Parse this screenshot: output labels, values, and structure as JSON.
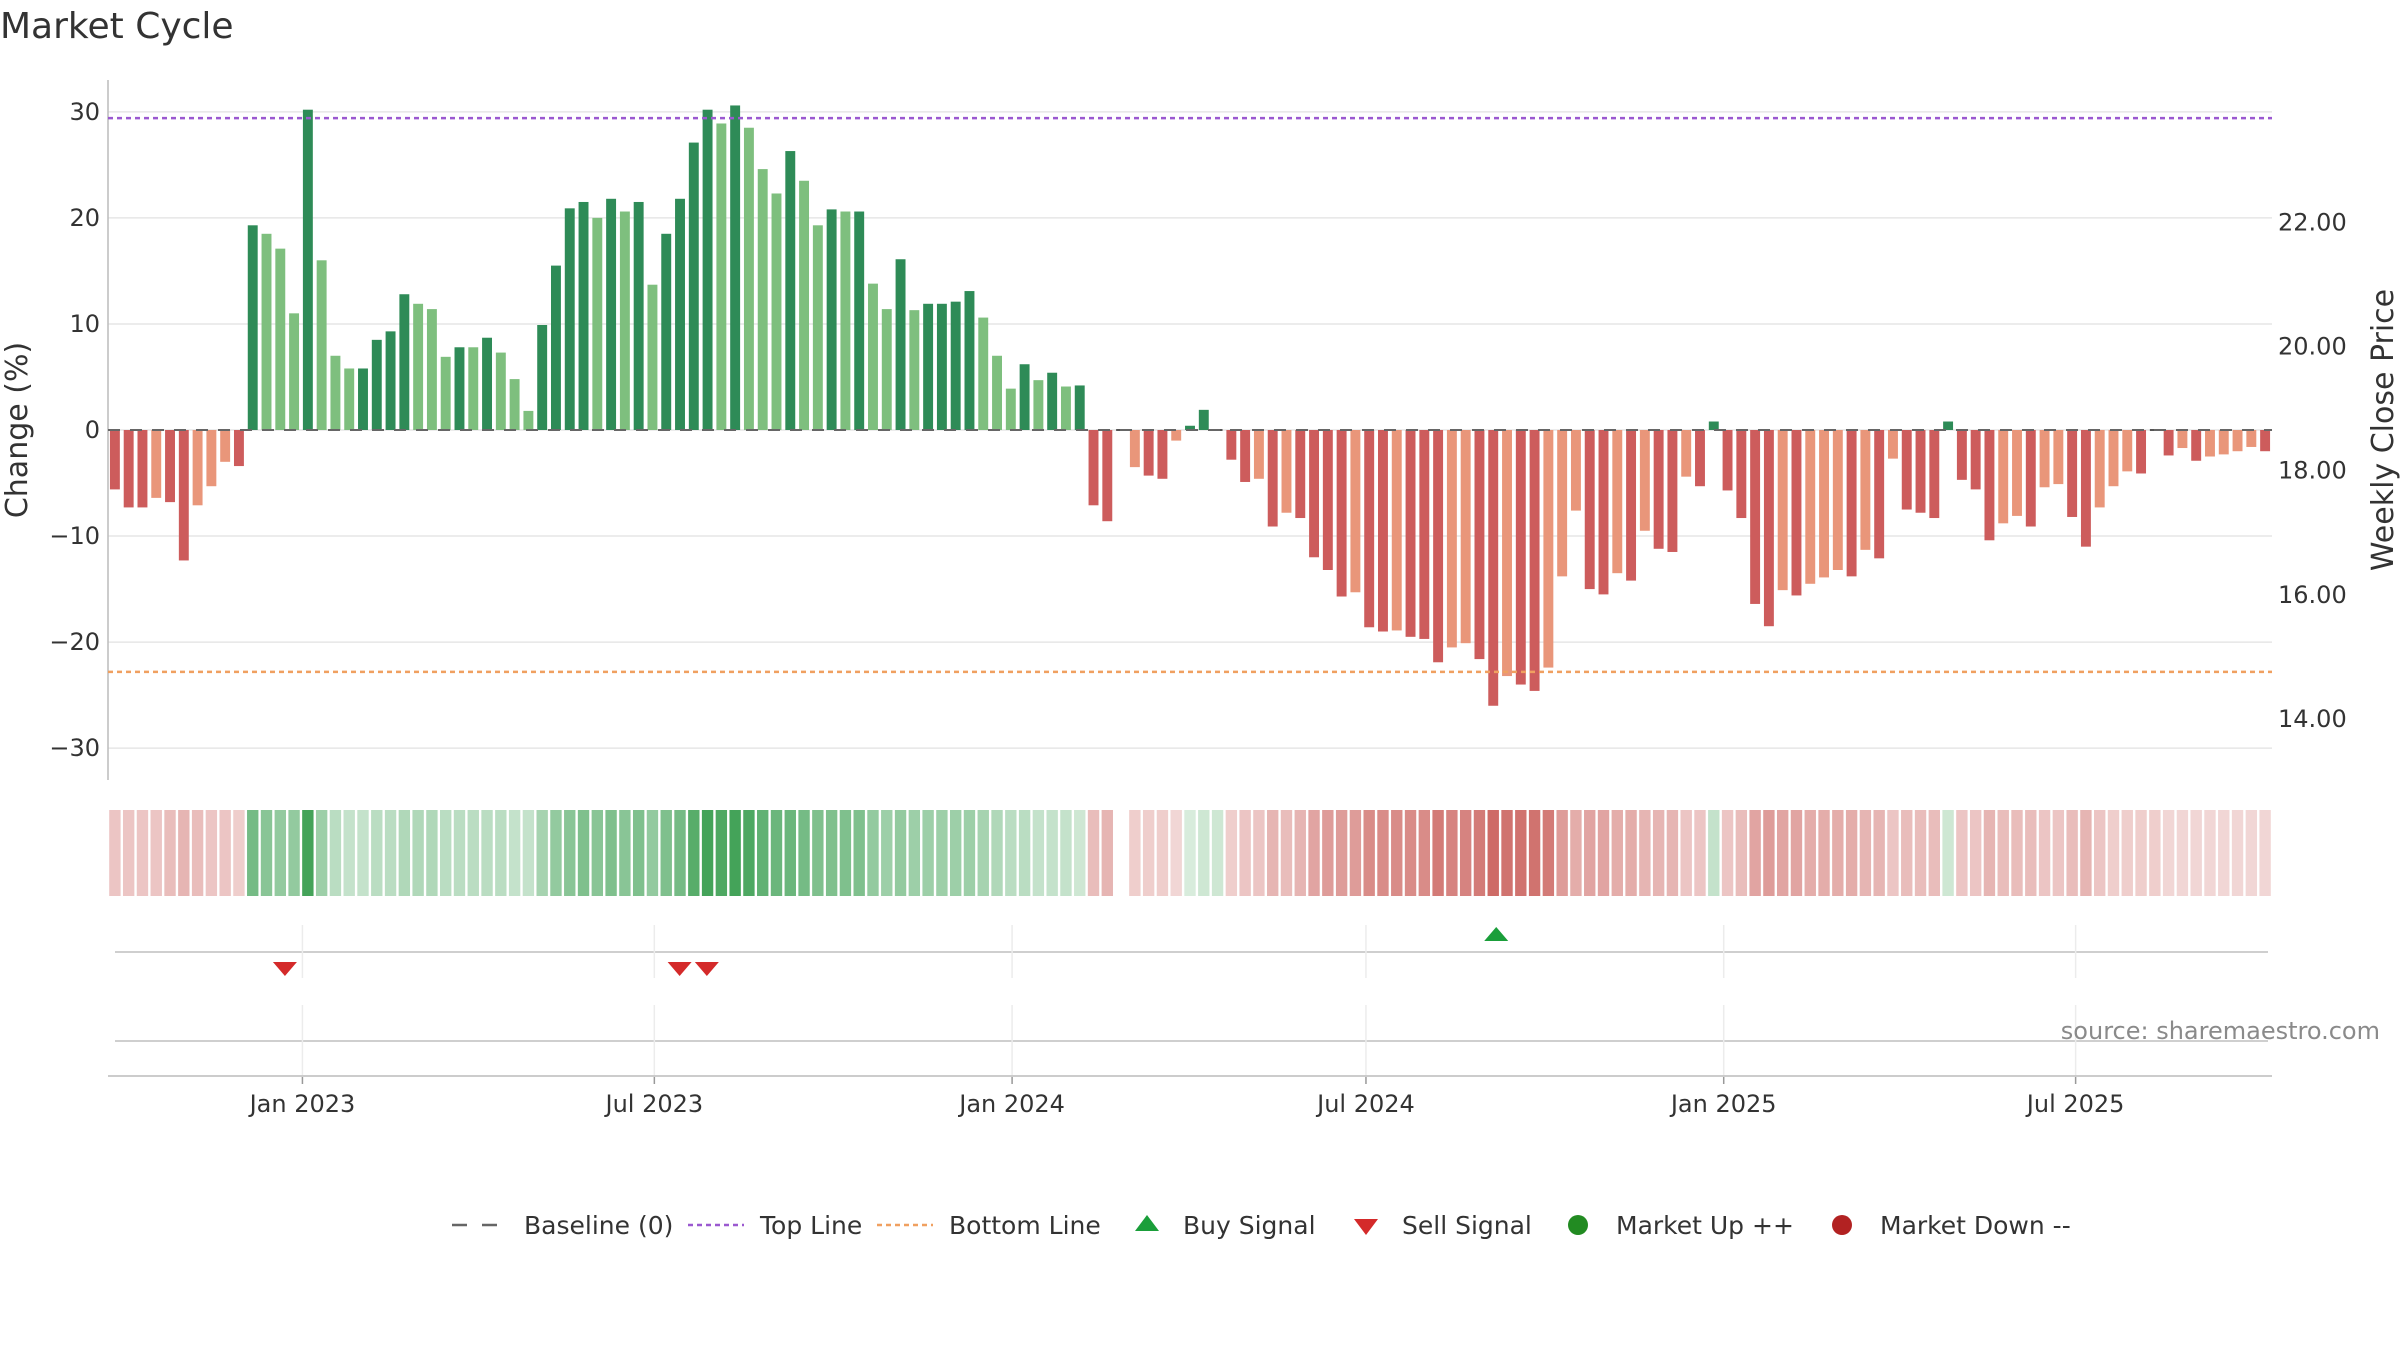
{
  "chart_data": {
    "type": "bar",
    "title": "Market Cycle",
    "ylabel": "Change (%)",
    "y2label": "Weekly Close Price",
    "ylim": [
      -33,
      33
    ],
    "y2lim": [
      13.0,
      24.28
    ],
    "yticks": [
      -30,
      -20,
      -10,
      0,
      10,
      20,
      30
    ],
    "y2ticks": [
      14,
      16,
      18,
      20,
      22
    ],
    "y2tick_labels": [
      "14.00",
      "16.00",
      "18.00",
      "20.00",
      "22.00"
    ],
    "top_line": 29.4,
    "bottom_line": -22.8,
    "x_start": "2022-09-23",
    "x_end": "2025-10-10",
    "xtick_dates": [
      "2023-01-01",
      "2023-07-01",
      "2024-01-01",
      "2024-07-01",
      "2025-01-01",
      "2025-07-01"
    ],
    "xtick_labels": [
      "Jan 2023",
      "Jul 2023",
      "Jan 2024",
      "Jul 2024",
      "Jan 2025",
      "Jul 2025"
    ],
    "grid": true,
    "legend_position": "bottom-center",
    "source": "source: sharemaestro.com",
    "colors": {
      "strong_up": "#2e8b57",
      "weak_up": "#7ebf7e",
      "strong_down": "#cd5c5c",
      "weak_down": "#e9967a",
      "top_line": "#9b59d0",
      "bottom_line": "#f0a060",
      "buy": "#1a9e3a",
      "sell": "#d42a2a",
      "market_up": "#228b22",
      "market_down": "#b22222",
      "baseline": "#666666"
    },
    "bars": [
      [
        -5.6,
        "s"
      ],
      [
        -7.3,
        "s"
      ],
      [
        -7.3,
        "s"
      ],
      [
        -6.4,
        "w"
      ],
      [
        -6.8,
        "s"
      ],
      [
        -12.3,
        "s"
      ],
      [
        -7.1,
        "w"
      ],
      [
        -5.3,
        "w"
      ],
      [
        -3.0,
        "w"
      ],
      [
        -3.4,
        "s"
      ],
      [
        19.3,
        "s"
      ],
      [
        18.5,
        "w"
      ],
      [
        17.1,
        "w"
      ],
      [
        11.0,
        "w"
      ],
      [
        30.2,
        "s"
      ],
      [
        16.0,
        "w"
      ],
      [
        7.0,
        "w"
      ],
      [
        5.8,
        "w"
      ],
      [
        5.8,
        "s"
      ],
      [
        8.5,
        "s"
      ],
      [
        9.3,
        "s"
      ],
      [
        12.8,
        "s"
      ],
      [
        11.9,
        "w"
      ],
      [
        11.4,
        "w"
      ],
      [
        6.9,
        "w"
      ],
      [
        7.8,
        "s"
      ],
      [
        7.8,
        "w"
      ],
      [
        8.7,
        "s"
      ],
      [
        7.3,
        "w"
      ],
      [
        4.8,
        "w"
      ],
      [
        1.8,
        "w"
      ],
      [
        9.9,
        "s"
      ],
      [
        15.5,
        "s"
      ],
      [
        20.9,
        "s"
      ],
      [
        21.5,
        "s"
      ],
      [
        20.0,
        "w"
      ],
      [
        21.8,
        "s"
      ],
      [
        20.6,
        "w"
      ],
      [
        21.5,
        "s"
      ],
      [
        13.7,
        "w"
      ],
      [
        18.5,
        "s"
      ],
      [
        21.8,
        "s"
      ],
      [
        27.1,
        "s"
      ],
      [
        30.2,
        "s"
      ],
      [
        28.9,
        "w"
      ],
      [
        30.6,
        "s"
      ],
      [
        28.5,
        "w"
      ],
      [
        24.6,
        "w"
      ],
      [
        22.3,
        "w"
      ],
      [
        26.3,
        "s"
      ],
      [
        23.5,
        "w"
      ],
      [
        19.3,
        "w"
      ],
      [
        20.8,
        "s"
      ],
      [
        20.6,
        "w"
      ],
      [
        20.6,
        "s"
      ],
      [
        13.8,
        "w"
      ],
      [
        11.4,
        "w"
      ],
      [
        16.1,
        "s"
      ],
      [
        11.3,
        "w"
      ],
      [
        11.9,
        "s"
      ],
      [
        11.9,
        "s"
      ],
      [
        12.1,
        "s"
      ],
      [
        13.1,
        "s"
      ],
      [
        10.6,
        "w"
      ],
      [
        7.0,
        "w"
      ],
      [
        3.9,
        "w"
      ],
      [
        6.2,
        "s"
      ],
      [
        4.7,
        "w"
      ],
      [
        5.4,
        "s"
      ],
      [
        4.1,
        "w"
      ],
      [
        4.2,
        "s"
      ],
      [
        -7.1,
        "s"
      ],
      [
        -8.6,
        "s"
      ],
      [
        0,
        "n"
      ],
      [
        -3.5,
        "w"
      ],
      [
        -4.3,
        "s"
      ],
      [
        -4.6,
        "s"
      ],
      [
        -1.0,
        "w"
      ],
      [
        0.4,
        "s"
      ],
      [
        1.9,
        "s"
      ],
      [
        0,
        "n"
      ],
      [
        -2.8,
        "s"
      ],
      [
        -4.9,
        "s"
      ],
      [
        -4.6,
        "w"
      ],
      [
        -9.1,
        "s"
      ],
      [
        -7.8,
        "w"
      ],
      [
        -8.3,
        "s"
      ],
      [
        -12.0,
        "s"
      ],
      [
        -13.2,
        "s"
      ],
      [
        -15.7,
        "s"
      ],
      [
        -15.3,
        "w"
      ],
      [
        -18.6,
        "s"
      ],
      [
        -19.0,
        "s"
      ],
      [
        -18.9,
        "w"
      ],
      [
        -19.5,
        "s"
      ],
      [
        -19.7,
        "s"
      ],
      [
        -21.9,
        "s"
      ],
      [
        -20.5,
        "w"
      ],
      [
        -20.1,
        "w"
      ],
      [
        -21.6,
        "s"
      ],
      [
        -26.0,
        "s"
      ],
      [
        -23.2,
        "w"
      ],
      [
        -24.0,
        "s"
      ],
      [
        -24.6,
        "s"
      ],
      [
        -22.4,
        "w"
      ],
      [
        -13.8,
        "w"
      ],
      [
        -7.6,
        "w"
      ],
      [
        -15.0,
        "s"
      ],
      [
        -15.5,
        "s"
      ],
      [
        -13.5,
        "w"
      ],
      [
        -14.2,
        "s"
      ],
      [
        -9.5,
        "w"
      ],
      [
        -11.2,
        "s"
      ],
      [
        -11.5,
        "s"
      ],
      [
        -4.4,
        "w"
      ],
      [
        -5.3,
        "s"
      ],
      [
        0.8,
        "s"
      ],
      [
        -5.7,
        "s"
      ],
      [
        -8.3,
        "s"
      ],
      [
        -16.4,
        "s"
      ],
      [
        -18.5,
        "s"
      ],
      [
        -15.1,
        "w"
      ],
      [
        -15.6,
        "s"
      ],
      [
        -14.5,
        "w"
      ],
      [
        -13.9,
        "w"
      ],
      [
        -13.2,
        "w"
      ],
      [
        -13.8,
        "s"
      ],
      [
        -11.3,
        "w"
      ],
      [
        -12.1,
        "s"
      ],
      [
        -2.7,
        "w"
      ],
      [
        -7.5,
        "s"
      ],
      [
        -7.8,
        "s"
      ],
      [
        -8.3,
        "s"
      ],
      [
        0.8,
        "s"
      ],
      [
        -4.7,
        "s"
      ],
      [
        -5.6,
        "s"
      ],
      [
        -10.4,
        "s"
      ],
      [
        -8.8,
        "w"
      ],
      [
        -8.1,
        "w"
      ],
      [
        -9.1,
        "s"
      ],
      [
        -5.4,
        "w"
      ],
      [
        -5.1,
        "w"
      ],
      [
        -8.2,
        "s"
      ],
      [
        -11.0,
        "s"
      ],
      [
        -7.3,
        "w"
      ],
      [
        -5.3,
        "w"
      ],
      [
        -3.9,
        "w"
      ],
      [
        -4.1,
        "s"
      ],
      [
        0,
        "n"
      ],
      [
        -2.4,
        "s"
      ],
      [
        -1.7,
        "w"
      ],
      [
        -2.9,
        "s"
      ],
      [
        -2.5,
        "w"
      ],
      [
        -2.3,
        "w"
      ],
      [
        -2.0,
        "w"
      ],
      [
        -1.6,
        "w"
      ],
      [
        -2.0,
        "s"
      ]
    ],
    "strip_intensity": [
      -0.35,
      -0.35,
      -0.35,
      -0.35,
      -0.4,
      -0.45,
      -0.4,
      -0.35,
      -0.35,
      -0.3,
      0.7,
      0.6,
      0.55,
      0.55,
      0.95,
      0.5,
      0.35,
      0.3,
      0.3,
      0.35,
      0.35,
      0.4,
      0.4,
      0.4,
      0.35,
      0.35,
      0.35,
      0.35,
      0.35,
      0.3,
      0.3,
      0.45,
      0.55,
      0.6,
      0.65,
      0.6,
      0.65,
      0.6,
      0.65,
      0.55,
      0.65,
      0.7,
      0.85,
      0.95,
      0.9,
      0.95,
      0.9,
      0.8,
      0.75,
      0.75,
      0.7,
      0.65,
      0.65,
      0.65,
      0.65,
      0.55,
      0.5,
      0.55,
      0.5,
      0.5,
      0.5,
      0.5,
      0.5,
      0.45,
      0.4,
      0.35,
      0.35,
      0.3,
      0.3,
      0.3,
      0.25,
      -0.4,
      -0.45,
      0,
      -0.3,
      -0.3,
      -0.3,
      -0.25,
      0.2,
      0.25,
      0.25,
      -0.3,
      -0.35,
      -0.35,
      -0.45,
      -0.4,
      -0.45,
      -0.55,
      -0.6,
      -0.6,
      -0.6,
      -0.7,
      -0.7,
      -0.7,
      -0.7,
      -0.7,
      -0.8,
      -0.75,
      -0.75,
      -0.8,
      -0.9,
      -0.85,
      -0.85,
      -0.85,
      -0.8,
      -0.6,
      -0.5,
      -0.55,
      -0.55,
      -0.5,
      -0.5,
      -0.45,
      -0.45,
      -0.45,
      -0.35,
      -0.35,
      0.3,
      -0.35,
      -0.4,
      -0.55,
      -0.6,
      -0.55,
      -0.55,
      -0.5,
      -0.5,
      -0.5,
      -0.5,
      -0.45,
      -0.45,
      -0.35,
      -0.4,
      -0.4,
      -0.4,
      0.25,
      -0.35,
      -0.35,
      -0.45,
      -0.4,
      -0.4,
      -0.4,
      -0.35,
      -0.35,
      -0.4,
      -0.45,
      -0.35,
      -0.3,
      -0.3,
      -0.3,
      -0.3,
      -0.25,
      -0.25,
      -0.25,
      -0.25,
      -0.25,
      -0.25,
      -0.25,
      -0.25
    ],
    "buy_signals": [
      "2024-09-06"
    ],
    "sell_signals": [
      "2022-12-23",
      "2023-07-14",
      "2023-07-28"
    ],
    "legend": [
      {
        "key": "baseline",
        "label": "Baseline (0)"
      },
      {
        "key": "top_line",
        "label": "Top Line"
      },
      {
        "key": "bottom_line",
        "label": "Bottom Line"
      },
      {
        "key": "buy",
        "label": "Buy Signal"
      },
      {
        "key": "sell",
        "label": "Sell Signal"
      },
      {
        "key": "market_up",
        "label": "Market Up ++"
      },
      {
        "key": "market_down",
        "label": "Market Down --"
      }
    ]
  }
}
